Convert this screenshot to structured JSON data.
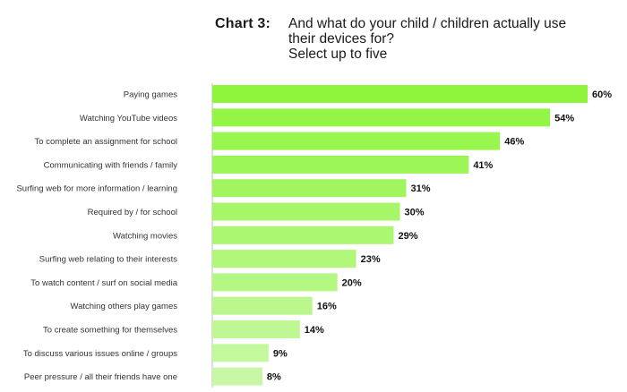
{
  "header": {
    "chart_number": "Chart 3:",
    "question_line1": "And what do your child / children actually use",
    "question_line2": "their devices for?",
    "question_line3": "Select up to five"
  },
  "chart_data": {
    "type": "bar",
    "orientation": "horizontal",
    "title": "And what do your child / children actually use their devices for? Select up to five",
    "categories": [
      "Paying games",
      "Watching YouTube videos",
      "To complete an assignment for school",
      "Communicating with friends / family",
      "Surfing web for more information / learning",
      "Required by / for school",
      "Watching movies",
      "Surfing web relating to their interests",
      "To watch content / surf on social media",
      "Watching others play games",
      "To create something for themselves",
      "To discuss various issues online / groups",
      "Peer pressure / all their friends have one"
    ],
    "values": [
      60,
      54,
      46,
      41,
      31,
      30,
      29,
      23,
      20,
      16,
      14,
      9,
      8
    ],
    "value_labels": [
      "60%",
      "54%",
      "46%",
      "41%",
      "31%",
      "30%",
      "29%",
      "23%",
      "20%",
      "16%",
      "14%",
      "9%",
      "8%"
    ],
    "xlim": [
      0,
      60
    ],
    "grid": false,
    "colors": {
      "bar_high": "#8ef53c",
      "bar_low": "#c8f8a6",
      "axis": "#bbbbbb"
    }
  }
}
